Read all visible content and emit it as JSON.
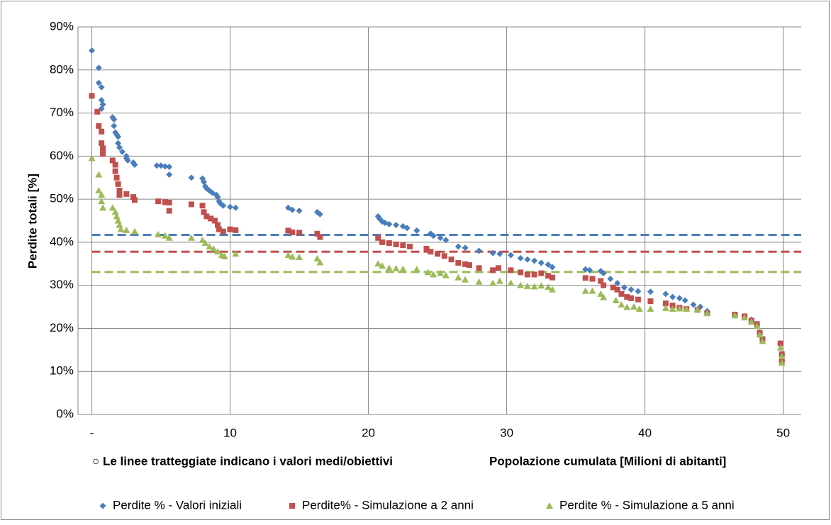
{
  "chart_data": {
    "type": "scatter",
    "y_label": "Perdite totali [%]",
    "x_label": "Popolazione cumulata [Milioni di abitanti]",
    "annotation": "○ Le linee tratteggiate indicano i valori medi/obiettivi",
    "xlim": [
      -1,
      51.3
    ],
    "ylim": [
      0,
      90
    ],
    "xticks": [
      {
        "value": 0,
        "label": "-"
      },
      10,
      20,
      30,
      40,
      50
    ],
    "yticks": [
      {
        "value": 0,
        "label": "0%"
      },
      {
        "value": 10,
        "label": "10%"
      },
      {
        "value": 20,
        "label": "20%"
      },
      {
        "value": 30,
        "label": "30%"
      },
      {
        "value": 40,
        "label": "40%"
      },
      {
        "value": 50,
        "label": "50%"
      },
      {
        "value": 60,
        "label": "60%"
      },
      {
        "value": 70,
        "label": "70%"
      },
      {
        "value": 80,
        "label": "80%"
      },
      {
        "value": 90,
        "label": "90%"
      }
    ],
    "grid": true,
    "legend": "bottom",
    "reference_lines": [
      {
        "value": 41.7,
        "color": "#4a7ebb"
      },
      {
        "value": 37.8,
        "color": "#c0504d"
      },
      {
        "value": 33.1,
        "color": "#9bbb59"
      }
    ],
    "series": [
      {
        "name": "Perdite % - Valori iniziali",
        "color": "#4a7ebb",
        "marker": "diamond",
        "x": [
          0,
          0.5,
          0.5,
          0.7,
          0.7,
          0.8,
          0.7,
          1.5,
          1.6,
          1.6,
          1.7,
          1.8,
          1.9,
          1.9,
          2,
          2.2,
          2.5,
          2.5,
          2.6,
          3,
          3.1,
          4.7,
          5,
          5.3,
          5.6,
          5.6,
          7.2,
          8,
          8.1,
          8.2,
          8.3,
          8.5,
          8.7,
          9,
          9.1,
          9.2,
          9.3,
          9.5,
          10,
          10.4,
          14.2,
          14.5,
          15,
          16.3,
          16.5,
          20.7,
          20.8,
          21,
          21.2,
          21.5,
          22,
          22.5,
          22.8,
          23.5,
          24.5,
          24.7,
          25.2,
          25.6,
          26.5,
          27,
          28,
          29,
          29.5,
          30.3,
          31,
          31.5,
          32,
          32.5,
          33,
          33.3,
          35.7,
          36,
          36.8,
          37,
          37.5,
          38,
          38.5,
          39,
          39.5,
          40.4,
          41.5,
          42,
          42.5,
          42.9,
          43.5,
          44,
          44.5,
          46.5,
          47.2,
          47.7,
          48.1,
          48.3,
          48.5,
          49.8,
          49.9,
          49.9
        ],
        "values": [
          84.5,
          80.5,
          77,
          76,
          73,
          72,
          71,
          69,
          68.5,
          67,
          65.5,
          65,
          64.5,
          63,
          62,
          61,
          60,
          59.5,
          59,
          58.5,
          58,
          57.8,
          57.8,
          57.6,
          57.5,
          55.7,
          55,
          54.8,
          54,
          53,
          52.5,
          52,
          51.5,
          51,
          50.5,
          49.5,
          49,
          48.5,
          48.2,
          48,
          48,
          47.5,
          47.3,
          47,
          46.5,
          46,
          45.5,
          44.8,
          44.5,
          44.2,
          44,
          43.7,
          43.3,
          42.7,
          42,
          41.5,
          41,
          40.5,
          39,
          38.7,
          38,
          37.5,
          37.3,
          37,
          36.3,
          36,
          35.7,
          35.2,
          34.8,
          34.2,
          33.7,
          33.5,
          33.3,
          32.8,
          31.5,
          30.5,
          29.5,
          29,
          28.6,
          28.5,
          28,
          27.3,
          27,
          26.5,
          25.5,
          25,
          24,
          23,
          22.8,
          22,
          21,
          19,
          17.5,
          16.5,
          14,
          12.5
        ]
      },
      {
        "name": "Perdite% - Simulazione a 2 anni",
        "color": "#c0504d",
        "marker": "square",
        "x": [
          0,
          0.4,
          0.5,
          0.7,
          0.7,
          0.8,
          0.8,
          1.5,
          1.7,
          1.7,
          1.8,
          1.9,
          2,
          2,
          2.5,
          3,
          3.1,
          4.8,
          5.3,
          5.6,
          5.6,
          7.2,
          8,
          8.1,
          8.3,
          8.6,
          8.9,
          9.1,
          9.2,
          9.5,
          10,
          10.4,
          14.2,
          14.5,
          15,
          16.3,
          16.5,
          20.7,
          21,
          21.5,
          22,
          22.5,
          23,
          24.2,
          24.5,
          25,
          25.5,
          26,
          26.5,
          27,
          27.3,
          28,
          29,
          29.4,
          30.3,
          31,
          31.5,
          32,
          32.5,
          33,
          33.3,
          35.7,
          36.2,
          36.8,
          37,
          37.7,
          38,
          38.3,
          38.7,
          39,
          39.5,
          40.4,
          41.5,
          42,
          42.5,
          43,
          43.8,
          44.5,
          46.5,
          47.2,
          47.7,
          48.1,
          48.3,
          48.5,
          49.8,
          49.9,
          49.9
        ],
        "values": [
          74,
          70.3,
          67,
          65.7,
          63,
          61.8,
          60.5,
          59,
          58,
          56.5,
          55,
          53.5,
          52,
          51,
          51.2,
          50.5,
          49.8,
          49.5,
          49.3,
          49.2,
          47.3,
          48.8,
          48.5,
          47,
          46,
          45.5,
          45,
          44,
          43,
          42.5,
          43,
          42.8,
          42.7,
          42.3,
          42.2,
          42,
          41.2,
          41,
          40,
          39.8,
          39.5,
          39.3,
          39,
          38.5,
          37.8,
          37.3,
          36.8,
          36,
          35.2,
          34.9,
          34.7,
          34,
          33.5,
          34,
          33.5,
          33,
          32.5,
          32.5,
          32.8,
          32.2,
          31.8,
          31.7,
          31.5,
          31,
          30,
          29.5,
          29,
          28,
          27.3,
          27,
          26.7,
          26.3,
          25.8,
          25.3,
          24.8,
          24.5,
          24.3,
          23.5,
          23.2,
          22.8,
          21.8,
          21,
          19,
          17.5,
          16.5,
          14,
          12.5
        ]
      },
      {
        "name": "Perdite % - Simulazione a 5 anni",
        "color": "#9bbb59",
        "marker": "triangle",
        "x": [
          0,
          0.5,
          0.5,
          0.7,
          0.7,
          0.8,
          1.5,
          1.7,
          1.8,
          1.9,
          2,
          2.1,
          2.5,
          3.1,
          4.8,
          5.3,
          5.6,
          7.2,
          8,
          8.2,
          8.5,
          8.8,
          9.1,
          9.4,
          9.6,
          10.4,
          14.2,
          14.5,
          15,
          16.3,
          16.5,
          20.7,
          21,
          21.5,
          22,
          22.5,
          23.5,
          24.3,
          24.7,
          25.2,
          25.6,
          26.5,
          27,
          28,
          29,
          29.5,
          30.3,
          31,
          31.5,
          32,
          32.5,
          33,
          33.3,
          35.7,
          36.2,
          36.8,
          37,
          37.9,
          38.3,
          38.7,
          39.2,
          39.6,
          40.4,
          41.5,
          42,
          42.5,
          43,
          43.8,
          44.5,
          46.5,
          47.2,
          47.7,
          48.1,
          48.3,
          48.5,
          49.8,
          49.9,
          49.9
        ],
        "values": [
          59.5,
          55.7,
          52,
          51,
          49.5,
          48,
          48,
          47,
          46,
          45,
          44,
          43,
          42.8,
          42.5,
          41.8,
          41.5,
          41,
          41,
          40.5,
          39.8,
          39,
          38.5,
          37.8,
          37,
          36.7,
          37.3,
          37,
          36.6,
          36.5,
          36.2,
          35.3,
          35,
          34.5,
          34,
          33.9,
          33.8,
          33.7,
          33,
          32.5,
          32.8,
          32.3,
          31.8,
          31.3,
          30.8,
          30.5,
          31,
          30.5,
          30,
          29.8,
          29.7,
          29.9,
          29.6,
          29,
          28.7,
          28.7,
          28,
          27.2,
          26.5,
          25.5,
          24.9,
          25,
          24.5,
          24.5,
          24.7,
          24.5,
          24.6,
          24.5,
          24.4,
          23.5,
          23,
          22.5,
          21.5,
          20.5,
          18.5,
          17,
          15.5,
          13.5,
          12
        ]
      }
    ]
  }
}
